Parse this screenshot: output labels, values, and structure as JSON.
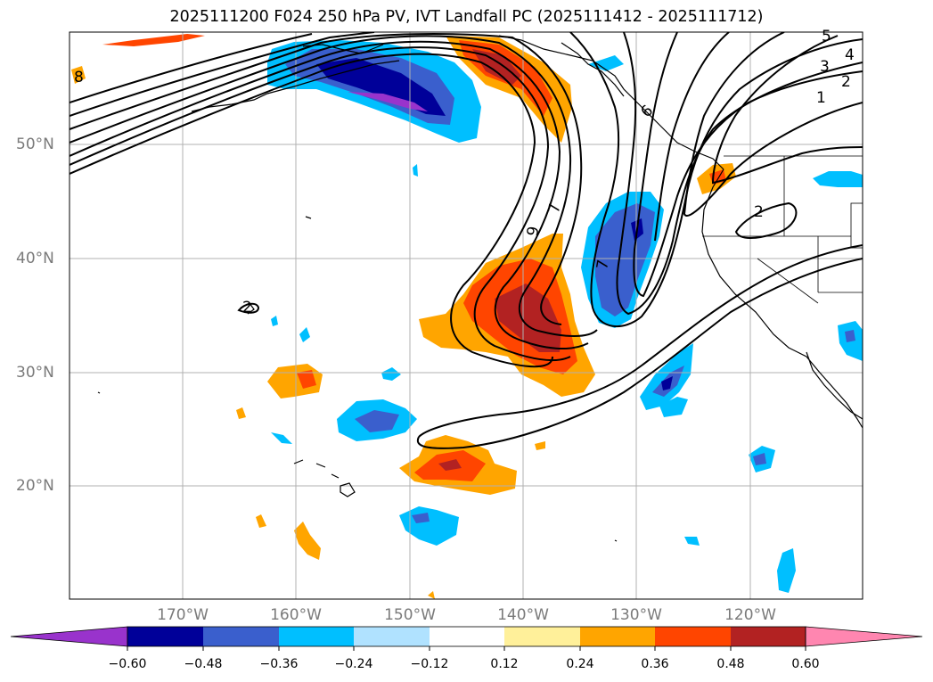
{
  "title": "2025111200 F024 250 hPa PV, IVT Landfall PC (2025111412 - 2025111712)",
  "lat_labels": [
    "50°N",
    "40°N",
    "30°N",
    "20°N"
  ],
  "lon_labels": [
    "170°W",
    "160°W",
    "150°W",
    "140°W",
    "130°W",
    "120°W"
  ],
  "colorbar": {
    "ticks": [
      "−0.60",
      "−0.48",
      "−0.36",
      "−0.24",
      "−0.12",
      "0.12",
      "0.24",
      "0.36",
      "0.48",
      "0.60"
    ],
    "colors": [
      "#9933cc",
      "#000099",
      "#3a5fcd",
      "#00bfff",
      "#b0e2ff",
      "#ffffff",
      "#fff09a",
      "#ffa500",
      "#ff4500",
      "#b22222",
      "#ff86b0"
    ]
  },
  "contour_labels": [
    "8",
    "9",
    "7",
    "6",
    "5",
    "4",
    "3",
    "2",
    "1",
    "7",
    "2",
    "2"
  ],
  "colors": {
    "contour": "#000000",
    "grid": "#b0b0b0",
    "coast": "#000000"
  }
}
